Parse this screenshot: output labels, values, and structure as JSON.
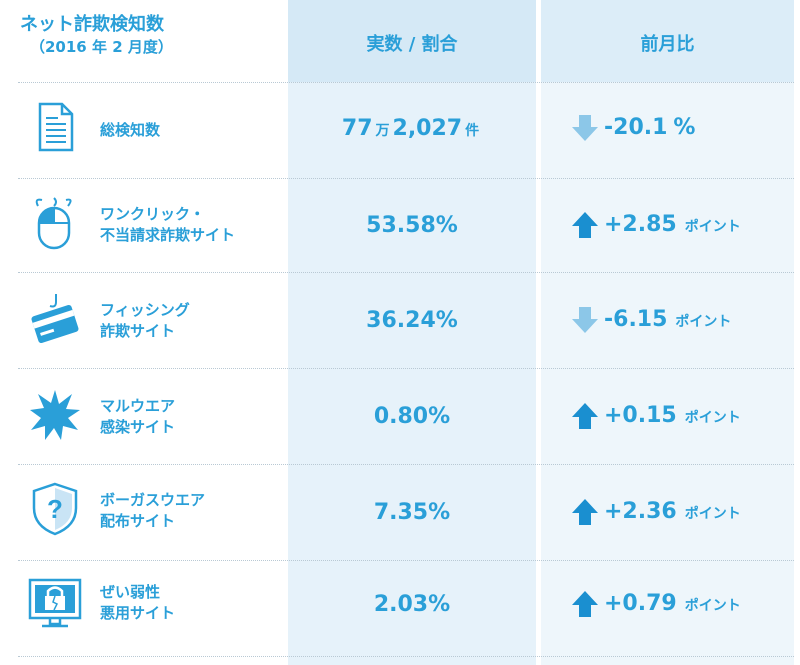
{
  "header": {
    "title": "ネット詐欺検知数",
    "subtitle": "（2016 年 2 月度）",
    "col_value": "実数 / 割合",
    "col_change": "前月比"
  },
  "colors": {
    "accent": "#2a9fd8",
    "arrow_up": "#1a8fd0",
    "arrow_down": "#8cc7e8",
    "col_bg": "#e6f2fa"
  },
  "rows": [
    {
      "icon": "document-icon",
      "label_line1": "総検知数",
      "label_line2": "",
      "value_main": "77",
      "value_unit": "万",
      "value_rest": "2,027",
      "value_unit2": "件",
      "direction": "down",
      "change": "-20.1",
      "change_unit": "%"
    },
    {
      "icon": "mouse-icon",
      "label_line1": "ワンクリック・",
      "label_line2": "不当請求詐欺サイト",
      "value_main": "53.58%",
      "direction": "up",
      "change": "+2.85",
      "change_unit": "ポイント"
    },
    {
      "icon": "credit-card-hook-icon",
      "label_line1": "フィッシング",
      "label_line2": "詐欺サイト",
      "value_main": "36.24%",
      "direction": "down",
      "change": "-6.15",
      "change_unit": "ポイント"
    },
    {
      "icon": "burst-icon",
      "label_line1": "マルウエア",
      "label_line2": "感染サイト",
      "value_main": "0.80%",
      "direction": "up",
      "change": "+0.15",
      "change_unit": "ポイント"
    },
    {
      "icon": "shield-question-icon",
      "label_line1": "ボーガスウエア",
      "label_line2": "配布サイト",
      "value_main": "7.35%",
      "direction": "up",
      "change": "+2.36",
      "change_unit": "ポイント"
    },
    {
      "icon": "broken-lock-monitor-icon",
      "label_line1": "ぜい弱性",
      "label_line2": "悪用サイト",
      "value_main": "2.03%",
      "direction": "up",
      "change": "+0.79",
      "change_unit": "ポイント"
    }
  ]
}
